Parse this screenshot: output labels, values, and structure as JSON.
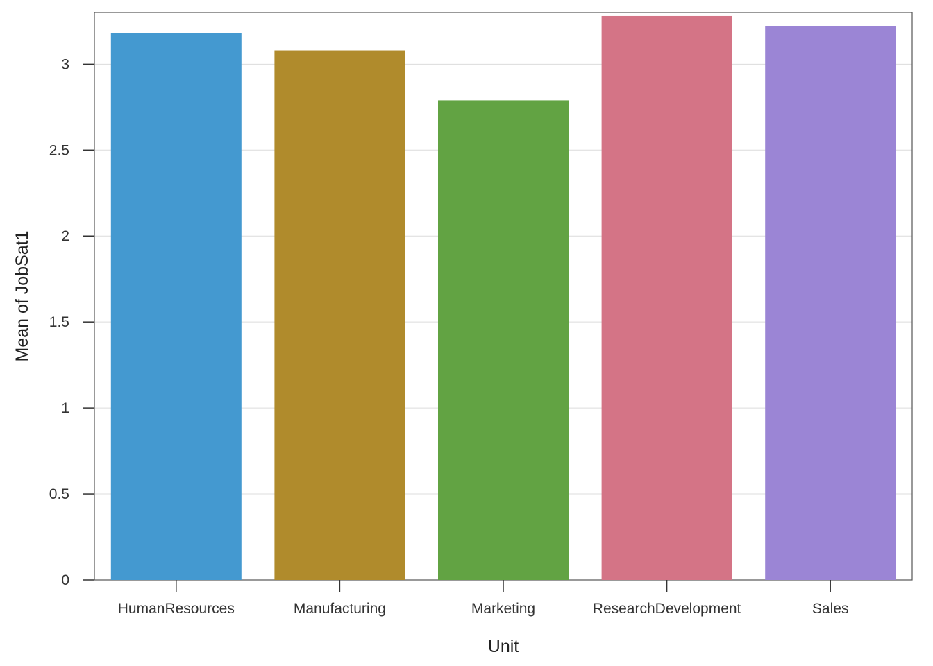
{
  "chart_data": {
    "type": "bar",
    "xlabel": "Unit",
    "ylabel": "Mean of JobSat1",
    "categories": [
      "HumanResources",
      "Manufacturing",
      "Marketing",
      "ResearchDevelopment",
      "Sales"
    ],
    "values": [
      3.18,
      3.08,
      2.79,
      3.28,
      3.22
    ],
    "colors": [
      "#4499d0",
      "#b08b2c",
      "#62a343",
      "#d47486",
      "#9b85d5"
    ],
    "ylim": [
      0,
      3.3
    ],
    "yticks": [
      {
        "value": 0,
        "label": "0"
      },
      {
        "value": 0.5,
        "label": "0.5"
      },
      {
        "value": 1,
        "label": "1"
      },
      {
        "value": 1.5,
        "label": "1.5"
      },
      {
        "value": 2,
        "label": "2"
      },
      {
        "value": 2.5,
        "label": "2.5"
      },
      {
        "value": 3,
        "label": "3"
      }
    ],
    "grid": true,
    "legend": "none"
  }
}
